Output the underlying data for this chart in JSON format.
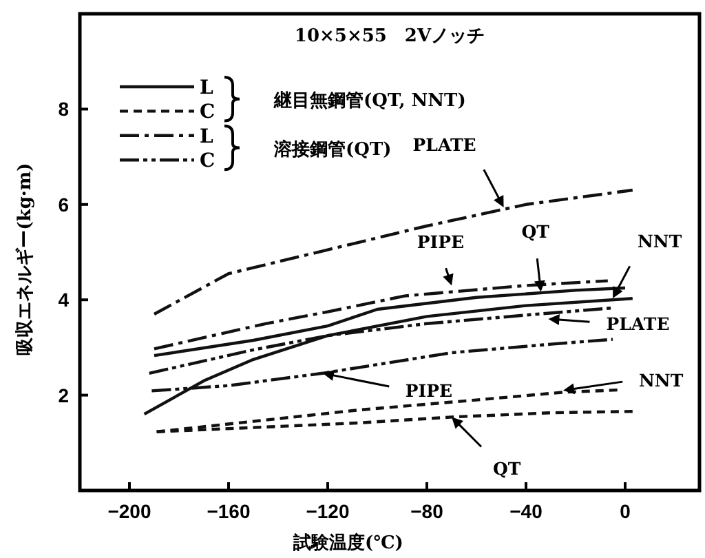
{
  "chart_data": {
    "type": "line",
    "title": "10×5×55　2Vノッチ",
    "xlabel": "試験温度(℃)",
    "ylabel": "吸収エネルギー(kg·m)",
    "xlim": [
      -220,
      30
    ],
    "ylim": [
      0,
      10
    ],
    "xticks": [
      -200,
      -160,
      -120,
      -80,
      -40,
      0
    ],
    "yticks": [
      2,
      4,
      6,
      8
    ],
    "grid": false,
    "legend": "top left",
    "series": [
      {
        "name": "L",
        "color": "#111111",
        "line_style": "solid",
        "x": [
          -190,
          -150,
          -120,
          -100,
          -60,
          -20,
          0
        ],
        "values": [
          2.83,
          3.15,
          3.45,
          3.8,
          4.05,
          4.2,
          4.25
        ]
      },
      {
        "color": "#111111",
        "line_style": "solid",
        "x": [
          -194,
          -170,
          -150,
          -120,
          -80,
          -40,
          3
        ],
        "values": [
          1.6,
          2.3,
          2.75,
          3.25,
          3.65,
          3.88,
          4.03
        ]
      },
      {
        "name": "C",
        "color": "#111111",
        "line_style": "dashed",
        "x": [
          -189,
          -150,
          -107,
          -70,
          -30,
          3
        ],
        "values": [
          1.23,
          1.32,
          1.42,
          1.54,
          1.63,
          1.66
        ]
      },
      {
        "color": "#111111",
        "line_style": "dashed",
        "x": [
          -189,
          -150,
          -107,
          -60,
          -25,
          -2
        ],
        "values": [
          1.23,
          1.45,
          1.69,
          1.9,
          2.06,
          2.11
        ]
      },
      {
        "name": "L",
        "color": "#111111",
        "line_style": "dashdot",
        "x": [
          -190,
          -160,
          -120,
          -80,
          -40,
          3
        ],
        "values": [
          3.7,
          4.55,
          5.05,
          5.55,
          6.0,
          6.3
        ]
      },
      {
        "color": "#111111",
        "line_style": "dashdot",
        "x": [
          -190,
          -145,
          -120,
          -89,
          -40,
          -7
        ],
        "values": [
          2.97,
          3.5,
          3.75,
          4.08,
          4.3,
          4.4
        ]
      },
      {
        "name": "C",
        "color": "#111111",
        "line_style": "dashdotdot",
        "x": [
          -192,
          -150,
          -120,
          -80,
          -40,
          -5
        ],
        "values": [
          2.46,
          2.95,
          3.25,
          3.5,
          3.68,
          3.83
        ]
      },
      {
        "color": "#111111",
        "line_style": "dashdotdot",
        "x": [
          -191,
          -160,
          -122,
          -70,
          -30,
          -5
        ],
        "values": [
          2.09,
          2.2,
          2.46,
          2.89,
          3.07,
          3.17
        ]
      }
    ],
    "annotations": [
      "継目無鋼管(QT, NNT)",
      "溶接鋼管(QT)",
      {
        "text": "PLATE",
        "x": -49,
        "y": 5.94
      },
      {
        "text": "PIPE",
        "x": -70,
        "y": 4.3
      },
      {
        "text": "QT",
        "x": -34,
        "y": 4.17
      },
      {
        "text": "NNT",
        "x": -5,
        "y": 4.03
      },
      {
        "text": "PLATE",
        "x": -31,
        "y": 3.6
      },
      {
        "text": "PIPE",
        "x": -122,
        "y": 2.46
      },
      {
        "text": "NNT",
        "x": -25,
        "y": 2.1
      },
      {
        "text": "QT",
        "x": -70,
        "y": 1.54
      }
    ]
  }
}
